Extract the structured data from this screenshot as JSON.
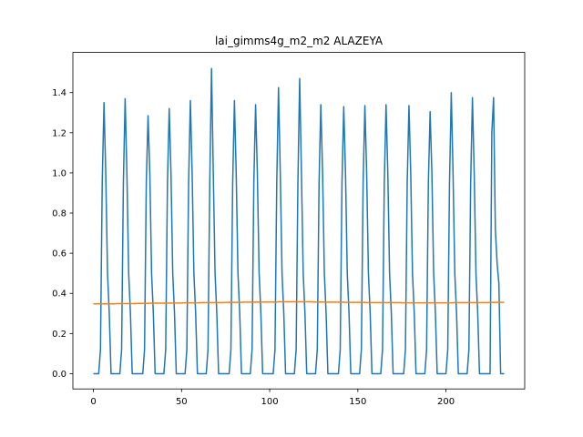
{
  "chart_data": {
    "type": "line",
    "title": "lai_gimms4g_m2_m2 ALAZEYA",
    "xlim": [
      -11.65,
      244.65
    ],
    "xticks": [
      0,
      50,
      100,
      150,
      200
    ],
    "ylim": [
      -0.076,
      1.6
    ],
    "yticks": [
      {
        "value": 0,
        "label": "0.0"
      },
      0.2,
      0.4,
      0.6,
      0.8,
      {
        "value": 1,
        "label": "1.0"
      },
      1.2,
      1.4
    ],
    "grid": false,
    "series": [
      {
        "color": "#1f77b4",
        "values": [
          0,
          0,
          0,
          0,
          0.12,
          0.95,
          1.35,
          1.0,
          0.5,
          0.3,
          0,
          0,
          0,
          0,
          0,
          0,
          0.12,
          0.95,
          1.37,
          1.0,
          0.5,
          0.3,
          0,
          0,
          0,
          0,
          0,
          0,
          0,
          0.12,
          0.95,
          1.285,
          1.0,
          0.5,
          0.3,
          0,
          0,
          0,
          0,
          0,
          0,
          0.12,
          0.95,
          1.32,
          1.0,
          0.5,
          0.3,
          0,
          0,
          0,
          0,
          0,
          0,
          0.12,
          0.95,
          1.36,
          1.0,
          0.5,
          0.3,
          0,
          0,
          0,
          0,
          0,
          0,
          0.12,
          0.95,
          1.52,
          1.0,
          0.5,
          0.3,
          0,
          0,
          0,
          0,
          0,
          0,
          0,
          0.12,
          0.95,
          1.36,
          1.0,
          0.5,
          0.3,
          0,
          0,
          0,
          0,
          0,
          0,
          0.12,
          0.95,
          1.34,
          1.0,
          0.5,
          0.3,
          0,
          0,
          0,
          0,
          0,
          0,
          0,
          0.12,
          0.95,
          1.425,
          1.0,
          0.5,
          0.3,
          0,
          0,
          0,
          0,
          0,
          0,
          0.12,
          0.95,
          1.47,
          1.0,
          0.5,
          0.3,
          0,
          0,
          0,
          0,
          0,
          0,
          0.12,
          0.95,
          1.34,
          1.0,
          0.5,
          0.3,
          0,
          0,
          0,
          0,
          0,
          0,
          0,
          0.12,
          0.95,
          1.33,
          1.0,
          0.5,
          0.3,
          0,
          0,
          0,
          0,
          0,
          0,
          0.12,
          0.95,
          1.335,
          1.0,
          0.5,
          0.3,
          0,
          0,
          0,
          0,
          0,
          0,
          0.12,
          0.95,
          1.34,
          1.0,
          0.5,
          0.3,
          0,
          0,
          0,
          0,
          0,
          0,
          0,
          0.12,
          0.95,
          1.335,
          1.0,
          0.5,
          0.3,
          0,
          0,
          0,
          0,
          0,
          0,
          0.12,
          0.95,
          1.305,
          1.0,
          0.5,
          0.3,
          0,
          0,
          0,
          0,
          0,
          0,
          0.12,
          0.95,
          1.4,
          1.0,
          0.5,
          0.3,
          0,
          0,
          0,
          0,
          0,
          0,
          0.12,
          0.95,
          1.375,
          1.0,
          0.5,
          0.3,
          0,
          0,
          0,
          0,
          0,
          0,
          0,
          1.2,
          1.375,
          0.72,
          0.55,
          0.45,
          0,
          0,
          0
        ]
      },
      {
        "color": "#ff7f0e",
        "values": [
          0.348,
          0.348,
          0.348,
          0.348,
          0.348,
          0.348,
          0.348,
          0.348,
          0.348,
          0.348,
          0.348,
          0.348,
          0.348,
          0.349,
          0.349,
          0.349,
          0.349,
          0.349,
          0.349,
          0.349,
          0.349,
          0.349,
          0.349,
          0.349,
          0.349,
          0.35,
          0.35,
          0.35,
          0.35,
          0.35,
          0.35,
          0.35,
          0.351,
          0.351,
          0.351,
          0.351,
          0.351,
          0.351,
          0.351,
          0.351,
          0.351,
          0.351,
          0.352,
          0.352,
          0.352,
          0.352,
          0.352,
          0.352,
          0.352,
          0.352,
          0.352,
          0.353,
          0.353,
          0.353,
          0.353,
          0.353,
          0.353,
          0.353,
          0.353,
          0.353,
          0.353,
          0.354,
          0.354,
          0.354,
          0.354,
          0.354,
          0.354,
          0.354,
          0.354,
          0.354,
          0.354,
          0.354,
          0.354,
          0.354,
          0.354,
          0.355,
          0.355,
          0.355,
          0.355,
          0.355,
          0.355,
          0.355,
          0.355,
          0.355,
          0.355,
          0.356,
          0.356,
          0.356,
          0.356,
          0.356,
          0.356,
          0.356,
          0.356,
          0.356,
          0.356,
          0.357,
          0.357,
          0.357,
          0.357,
          0.357,
          0.357,
          0.357,
          0.357,
          0.357,
          0.357,
          0.358,
          0.358,
          0.358,
          0.358,
          0.358,
          0.358,
          0.358,
          0.358,
          0.358,
          0.358,
          0.358,
          0.358,
          0.358,
          0.358,
          0.358,
          0.358,
          0.358,
          0.358,
          0.358,
          0.358,
          0.357,
          0.357,
          0.357,
          0.357,
          0.357,
          0.357,
          0.357,
          0.357,
          0.356,
          0.356,
          0.356,
          0.356,
          0.356,
          0.356,
          0.356,
          0.356,
          0.356,
          0.356,
          0.355,
          0.355,
          0.355,
          0.355,
          0.355,
          0.355,
          0.355,
          0.355,
          0.355,
          0.355,
          0.355,
          0.355,
          0.354,
          0.354,
          0.354,
          0.354,
          0.354,
          0.354,
          0.354,
          0.354,
          0.354,
          0.354,
          0.354,
          0.354,
          0.354,
          0.354,
          0.354,
          0.354,
          0.354,
          0.354,
          0.354,
          0.354,
          0.353,
          0.353,
          0.353,
          0.353,
          0.353,
          0.353,
          0.353,
          0.353,
          0.353,
          0.353,
          0.353,
          0.353,
          0.353,
          0.353,
          0.353,
          0.353,
          0.353,
          0.353,
          0.353,
          0.353,
          0.353,
          0.353,
          0.353,
          0.353,
          0.353,
          0.353,
          0.353,
          0.353,
          0.353,
          0.353,
          0.354,
          0.354,
          0.354,
          0.354,
          0.354,
          0.354,
          0.354,
          0.354,
          0.354,
          0.354,
          0.354,
          0.354,
          0.354,
          0.354,
          0.354,
          0.354,
          0.354,
          0.354,
          0.354,
          0.354,
          0.355,
          0.355,
          0.355,
          0.355,
          0.355,
          0.355,
          0.355,
          0.355,
          0.355
        ]
      }
    ]
  }
}
